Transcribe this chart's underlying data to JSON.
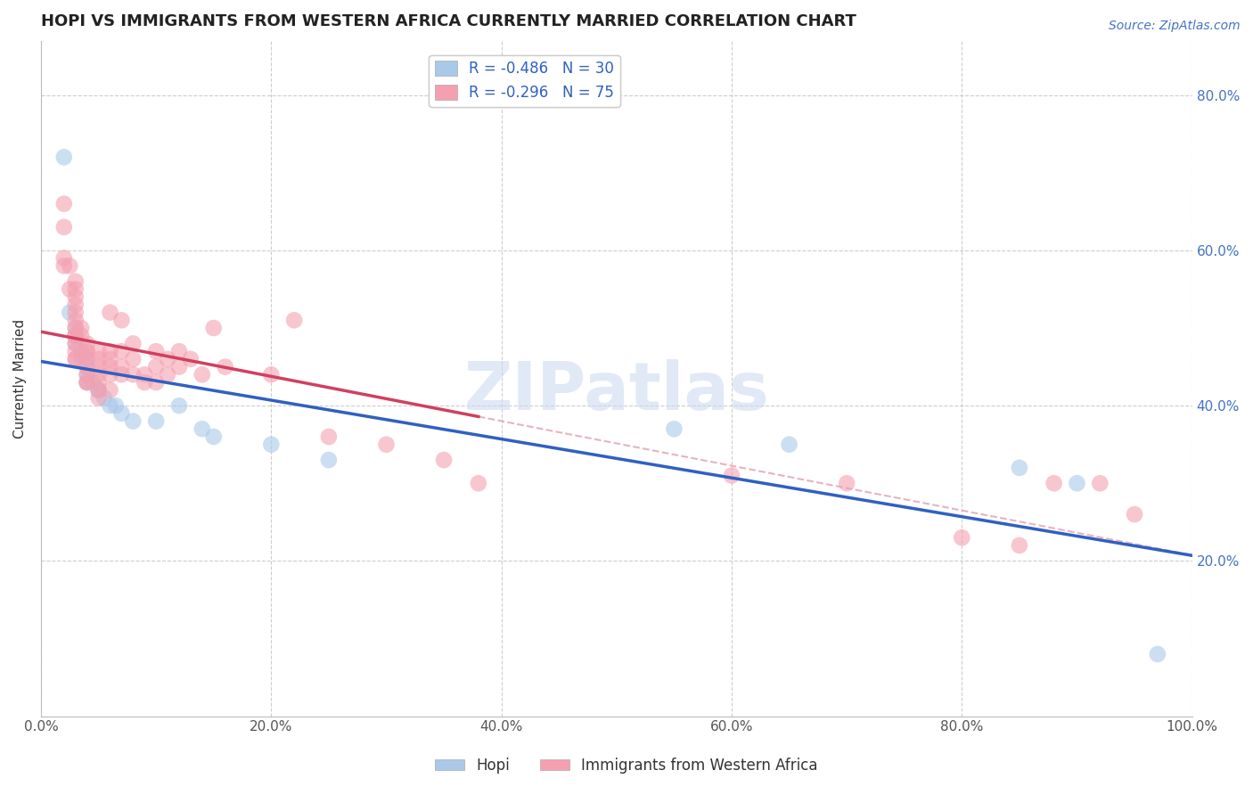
{
  "title": "HOPI VS IMMIGRANTS FROM WESTERN AFRICA CURRENTLY MARRIED CORRELATION CHART",
  "source": "Source: ZipAtlas.com",
  "ylabel": "Currently Married",
  "watermark": "ZIPatlas",
  "legend_label_hopi": "R = -0.486   N = 30",
  "legend_label_imm": "R = -0.296   N = 75",
  "hopi_color": "#aac8e8",
  "immigrants_color": "#f4a0b0",
  "hopi_line_color": "#3060c0",
  "immigrants_line_color": "#d04060",
  "dashed_color": "#e0a0b0",
  "background_color": "#ffffff",
  "grid_color": "#c8c8c8",
  "xmin": 0.0,
  "xmax": 1.0,
  "ymin": 0.0,
  "ymax": 0.87,
  "hopi_points": [
    [
      0.02,
      0.72
    ],
    [
      0.025,
      0.52
    ],
    [
      0.03,
      0.5
    ],
    [
      0.03,
      0.49
    ],
    [
      0.03,
      0.48
    ],
    [
      0.035,
      0.47
    ],
    [
      0.035,
      0.46
    ],
    [
      0.04,
      0.46
    ],
    [
      0.04,
      0.45
    ],
    [
      0.04,
      0.44
    ],
    [
      0.04,
      0.43
    ],
    [
      0.045,
      0.43
    ],
    [
      0.05,
      0.42
    ],
    [
      0.05,
      0.42
    ],
    [
      0.055,
      0.41
    ],
    [
      0.06,
      0.4
    ],
    [
      0.065,
      0.4
    ],
    [
      0.07,
      0.39
    ],
    [
      0.08,
      0.38
    ],
    [
      0.1,
      0.38
    ],
    [
      0.12,
      0.4
    ],
    [
      0.14,
      0.37
    ],
    [
      0.15,
      0.36
    ],
    [
      0.2,
      0.35
    ],
    [
      0.25,
      0.33
    ],
    [
      0.55,
      0.37
    ],
    [
      0.65,
      0.35
    ],
    [
      0.85,
      0.32
    ],
    [
      0.9,
      0.3
    ],
    [
      0.97,
      0.08
    ]
  ],
  "immigrants_points": [
    [
      0.02,
      0.66
    ],
    [
      0.02,
      0.63
    ],
    [
      0.02,
      0.59
    ],
    [
      0.02,
      0.58
    ],
    [
      0.025,
      0.55
    ],
    [
      0.025,
      0.58
    ],
    [
      0.03,
      0.56
    ],
    [
      0.03,
      0.55
    ],
    [
      0.03,
      0.54
    ],
    [
      0.03,
      0.53
    ],
    [
      0.03,
      0.52
    ],
    [
      0.03,
      0.51
    ],
    [
      0.03,
      0.5
    ],
    [
      0.03,
      0.49
    ],
    [
      0.03,
      0.49
    ],
    [
      0.03,
      0.48
    ],
    [
      0.03,
      0.47
    ],
    [
      0.03,
      0.46
    ],
    [
      0.03,
      0.46
    ],
    [
      0.035,
      0.5
    ],
    [
      0.035,
      0.49
    ],
    [
      0.04,
      0.48
    ],
    [
      0.04,
      0.47
    ],
    [
      0.04,
      0.47
    ],
    [
      0.04,
      0.46
    ],
    [
      0.04,
      0.45
    ],
    [
      0.04,
      0.44
    ],
    [
      0.04,
      0.43
    ],
    [
      0.04,
      0.43
    ],
    [
      0.05,
      0.47
    ],
    [
      0.05,
      0.46
    ],
    [
      0.05,
      0.45
    ],
    [
      0.05,
      0.44
    ],
    [
      0.05,
      0.43
    ],
    [
      0.05,
      0.42
    ],
    [
      0.05,
      0.41
    ],
    [
      0.06,
      0.52
    ],
    [
      0.06,
      0.47
    ],
    [
      0.06,
      0.46
    ],
    [
      0.06,
      0.45
    ],
    [
      0.06,
      0.44
    ],
    [
      0.06,
      0.42
    ],
    [
      0.07,
      0.51
    ],
    [
      0.07,
      0.47
    ],
    [
      0.07,
      0.45
    ],
    [
      0.07,
      0.44
    ],
    [
      0.08,
      0.48
    ],
    [
      0.08,
      0.46
    ],
    [
      0.08,
      0.44
    ],
    [
      0.09,
      0.44
    ],
    [
      0.09,
      0.43
    ],
    [
      0.1,
      0.47
    ],
    [
      0.1,
      0.45
    ],
    [
      0.1,
      0.43
    ],
    [
      0.11,
      0.46
    ],
    [
      0.11,
      0.44
    ],
    [
      0.12,
      0.47
    ],
    [
      0.12,
      0.45
    ],
    [
      0.13,
      0.46
    ],
    [
      0.14,
      0.44
    ],
    [
      0.15,
      0.5
    ],
    [
      0.16,
      0.45
    ],
    [
      0.2,
      0.44
    ],
    [
      0.22,
      0.51
    ],
    [
      0.25,
      0.36
    ],
    [
      0.3,
      0.35
    ],
    [
      0.35,
      0.33
    ],
    [
      0.38,
      0.3
    ],
    [
      0.6,
      0.31
    ],
    [
      0.7,
      0.3
    ],
    [
      0.8,
      0.23
    ],
    [
      0.85,
      0.22
    ],
    [
      0.88,
      0.3
    ],
    [
      0.92,
      0.3
    ],
    [
      0.95,
      0.26
    ]
  ],
  "xticks": [
    0.0,
    0.2,
    0.4,
    0.6,
    0.8,
    1.0
  ],
  "yticks": [
    0.0,
    0.2,
    0.4,
    0.6,
    0.8
  ],
  "xtick_labels": [
    "0.0%",
    "20.0%",
    "40.0%",
    "60.0%",
    "80.0%",
    "100.0%"
  ],
  "ytick_labels_right": [
    "",
    "20.0%",
    "40.0%",
    "60.0%",
    "80.0%"
  ],
  "title_fontsize": 13,
  "axis_label_fontsize": 11,
  "tick_fontsize": 11,
  "legend_fontsize": 12,
  "source_fontsize": 10,
  "pink_line_xend": 0.38,
  "scatter_size": 180
}
